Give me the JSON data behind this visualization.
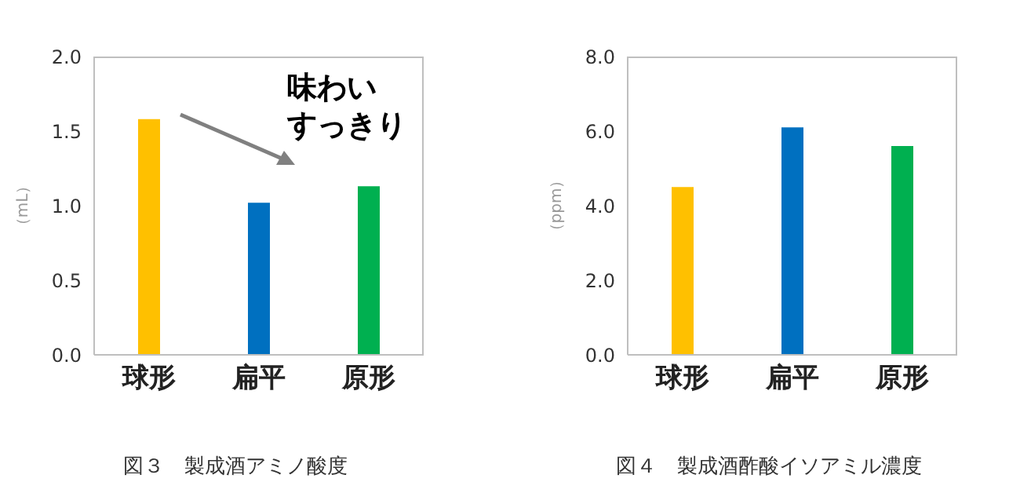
{
  "chart_data": [
    {
      "type": "bar",
      "title": "図３　製成酒アミノ酸度",
      "ylabel": "（mL）",
      "categories": [
        "球形",
        "扁平",
        "原形"
      ],
      "values": [
        1.58,
        1.02,
        1.13
      ],
      "colors": [
        "#ffc000",
        "#0070c0",
        "#00b050"
      ],
      "ylim": [
        0,
        2
      ],
      "yticks": [
        {
          "value": 0,
          "label": "0.0"
        },
        {
          "value": 0.5,
          "label": "0.5"
        },
        {
          "value": 1,
          "label": "1.0"
        },
        {
          "value": 1.5,
          "label": "1.5"
        },
        {
          "value": 2,
          "label": "2.0"
        }
      ],
      "grid": false,
      "legend": false,
      "annotations": [
        "味わい",
        "すっきり"
      ]
    },
    {
      "type": "bar",
      "title": "図４　製成酒酢酸イソアミル濃度",
      "ylabel": "（ppm）",
      "categories": [
        "球形",
        "扁平",
        "原形"
      ],
      "values": [
        4.5,
        6.1,
        5.6
      ],
      "colors": [
        "#ffc000",
        "#0070c0",
        "#00b050"
      ],
      "ylim": [
        0,
        8
      ],
      "yticks": [
        {
          "value": 0,
          "label": "0.0"
        },
        {
          "value": 2,
          "label": "2.0"
        },
        {
          "value": 4,
          "label": "4.0"
        },
        {
          "value": 6,
          "label": "6.0"
        },
        {
          "value": 8,
          "label": "8.0"
        }
      ],
      "grid": false,
      "legend": false
    }
  ]
}
